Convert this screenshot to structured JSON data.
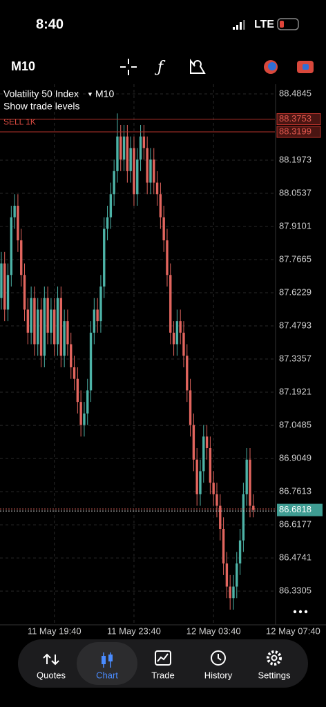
{
  "status_bar": {
    "time": "8:40",
    "network": "LTE"
  },
  "toolbar": {
    "timeframe": "M10"
  },
  "chart_data": {
    "type": "candlestick",
    "symbol": "Volatility 50 Index",
    "timeframe": "M10",
    "trade_levels_toggle": "Show trade levels",
    "open": [
      87.6,
      87.75,
      87.55,
      87.7,
      87.95,
      88.0,
      87.85,
      87.7,
      87.55,
      87.45,
      87.6,
      87.4,
      87.55,
      87.35,
      87.6,
      87.45,
      87.55,
      87.4,
      87.6,
      87.35,
      87.5,
      87.4,
      87.3,
      87.25,
      87.15,
      87.05,
      87.1,
      87.2,
      87.45,
      87.55,
      87.5,
      87.65,
      87.9,
      87.95,
      88.05,
      88.15,
      88.3,
      88.2,
      88.3,
      88.15,
      88.25,
      88.05,
      88.2,
      88.3,
      88.25,
      88.1,
      88.2,
      88.1,
      88.05,
      87.95,
      87.85,
      87.7,
      87.45,
      87.4,
      87.5,
      87.45,
      87.35,
      87.2,
      87.05,
      86.9,
      86.75,
      86.85,
      87.0,
      86.95,
      86.8,
      86.75,
      86.7,
      86.6,
      86.45,
      86.35,
      86.3,
      86.35,
      86.45,
      86.55,
      86.75,
      86.9,
      86.7
    ],
    "high": [
      87.8,
      87.8,
      87.75,
      88.0,
      88.05,
      88.05,
      87.9,
      87.75,
      87.6,
      87.65,
      87.65,
      87.6,
      87.6,
      87.65,
      87.65,
      87.6,
      87.6,
      87.65,
      87.65,
      87.55,
      87.55,
      87.45,
      87.35,
      87.3,
      87.2,
      87.15,
      87.25,
      87.5,
      87.6,
      87.6,
      87.7,
      87.95,
      88.0,
      88.1,
      88.2,
      88.4,
      88.35,
      88.35,
      88.35,
      88.3,
      88.3,
      88.25,
      88.35,
      88.35,
      88.3,
      88.25,
      88.25,
      88.15,
      88.1,
      88.0,
      87.9,
      87.75,
      87.5,
      87.55,
      87.55,
      87.5,
      87.4,
      87.25,
      87.1,
      86.95,
      86.9,
      87.05,
      87.05,
      87.0,
      86.85,
      86.8,
      86.75,
      86.65,
      86.5,
      86.4,
      86.4,
      86.5,
      86.6,
      86.8,
      86.95,
      86.95,
      86.75
    ],
    "low": [
      87.55,
      87.5,
      87.5,
      87.65,
      87.9,
      87.8,
      87.65,
      87.5,
      87.4,
      87.4,
      87.35,
      87.35,
      87.3,
      87.3,
      87.4,
      87.4,
      87.35,
      87.35,
      87.3,
      87.3,
      87.35,
      87.25,
      87.2,
      87.1,
      87.0,
      87.0,
      87.05,
      87.15,
      87.4,
      87.45,
      87.45,
      87.6,
      87.85,
      87.9,
      88.0,
      88.1,
      88.15,
      88.15,
      88.1,
      88.1,
      88.0,
      88.0,
      88.15,
      88.2,
      88.05,
      88.05,
      88.05,
      88.0,
      87.9,
      87.8,
      87.65,
      87.4,
      87.35,
      87.35,
      87.4,
      87.3,
      87.15,
      87.0,
      86.85,
      86.7,
      86.7,
      86.8,
      86.9,
      86.75,
      86.7,
      86.65,
      86.55,
      86.4,
      86.3,
      86.25,
      86.25,
      86.3,
      86.4,
      86.5,
      86.7,
      86.65,
      86.65
    ],
    "close": [
      87.75,
      87.55,
      87.7,
      87.95,
      88.0,
      87.85,
      87.7,
      87.55,
      87.45,
      87.6,
      87.4,
      87.55,
      87.35,
      87.6,
      87.45,
      87.55,
      87.4,
      87.6,
      87.35,
      87.5,
      87.4,
      87.3,
      87.25,
      87.15,
      87.05,
      87.1,
      87.2,
      87.45,
      87.55,
      87.5,
      87.65,
      87.9,
      87.95,
      88.05,
      88.15,
      88.3,
      88.2,
      88.3,
      88.15,
      88.25,
      88.05,
      88.2,
      88.3,
      88.25,
      88.1,
      88.2,
      88.1,
      88.05,
      87.95,
      87.85,
      87.7,
      87.45,
      87.4,
      87.5,
      87.45,
      87.35,
      87.2,
      87.05,
      86.9,
      86.75,
      86.85,
      87.0,
      86.95,
      86.8,
      86.75,
      86.7,
      86.6,
      86.45,
      86.35,
      86.3,
      86.35,
      86.45,
      86.55,
      86.75,
      86.9,
      86.7,
      86.6818
    ],
    "up_color": "#4db3a7",
    "down_color": "#e2655e",
    "ylim": [
      86.1842,
      88.5264
    ],
    "yticks": [
      88.4845,
      88.1973,
      88.0537,
      87.9101,
      87.7665,
      87.6229,
      87.4793,
      87.3357,
      87.1921,
      87.0485,
      86.9049,
      86.7613,
      86.6177,
      86.4741,
      86.3305
    ],
    "xlim": [
      -0.4,
      82.5
    ],
    "xticks": [
      {
        "value": 16,
        "label": "11 May 19:40"
      },
      {
        "value": 40,
        "label": "11 May 23:40"
      },
      {
        "value": 64,
        "label": "12 May 03:40"
      },
      {
        "value": 88,
        "label": "12 May 07:40"
      }
    ],
    "grid": true,
    "levels": [
      {
        "label": "SELL 1K",
        "value": 88.3753
      },
      {
        "value": 88.3199
      }
    ],
    "current_price": 86.6818
  },
  "nav": {
    "items": [
      "Quotes",
      "Chart",
      "Trade",
      "History",
      "Settings"
    ],
    "active": 1
  }
}
